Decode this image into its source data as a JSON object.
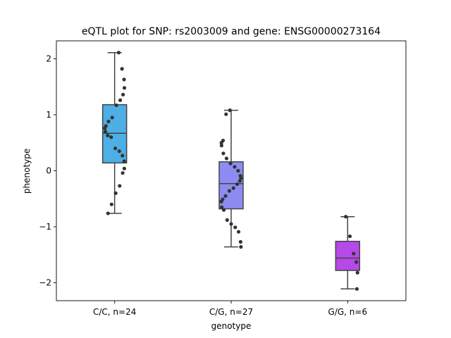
{
  "chart_data": {
    "type": "box",
    "title": "eQTL plot for SNP: rs2003009 and gene: ENSG00000273164",
    "xlabel": "genotype",
    "ylabel": "phenotype",
    "ylim": [
      -2.32,
      2.32
    ],
    "yticks": [
      -2,
      -1,
      0,
      1,
      2
    ],
    "categories": [
      "C/C, n=24",
      "C/G, n=27",
      "G/G, n=6"
    ],
    "colors": [
      "#4eaee6",
      "#8c8cf2",
      "#b649e8"
    ],
    "boxes": [
      {
        "whislo": -0.76,
        "q1": 0.14,
        "med": 0.67,
        "q3": 1.18,
        "whishi": 2.11
      },
      {
        "whislo": -1.36,
        "q1": -0.68,
        "med": -0.23,
        "q3": 0.16,
        "whishi": 1.08
      },
      {
        "whislo": -2.11,
        "q1": -1.78,
        "med": -1.56,
        "q3": -1.26,
        "whishi": -0.82
      }
    ],
    "points": [
      [
        2.11,
        1.82,
        1.63,
        1.48,
        1.36,
        1.26,
        1.17,
        0.95,
        0.88,
        0.8,
        0.76,
        0.7,
        0.63,
        0.6,
        0.4,
        0.35,
        0.27,
        0.17,
        0.04,
        -0.04,
        -0.27,
        -0.4,
        -0.6,
        -0.76
      ],
      [
        1.08,
        1.01,
        0.54,
        0.5,
        0.45,
        0.31,
        0.22,
        0.13,
        0.07,
        0.0,
        -0.09,
        -0.13,
        -0.18,
        -0.24,
        -0.31,
        -0.36,
        -0.45,
        -0.51,
        -0.55,
        -0.65,
        -0.7,
        -0.88,
        -0.95,
        -1.01,
        -1.09,
        -1.27,
        -1.36
      ],
      [
        -0.82,
        -1.17,
        -1.48,
        -1.63,
        -1.82,
        -2.11
      ]
    ]
  }
}
